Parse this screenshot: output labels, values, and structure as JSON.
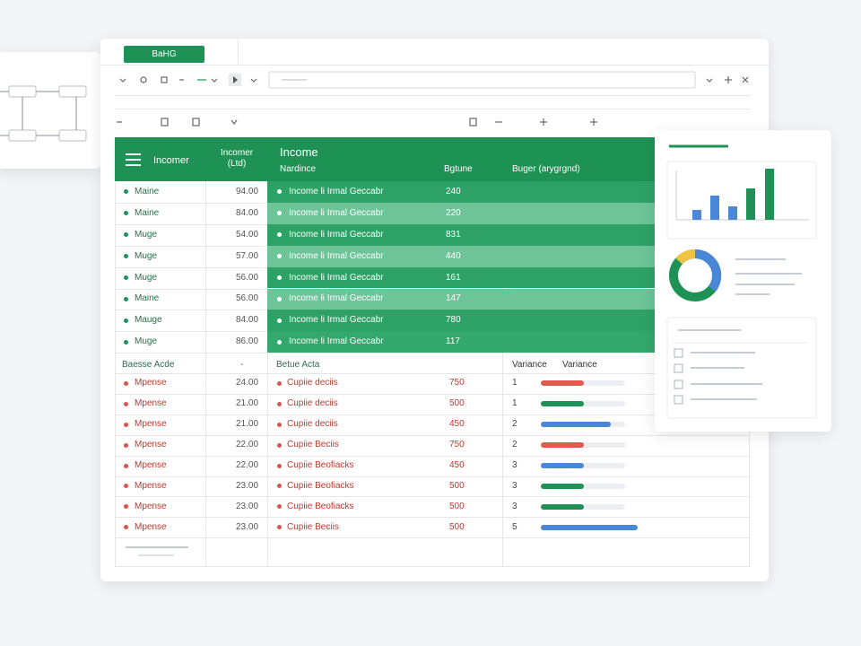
{
  "toolbar": {
    "tab": "BaHG"
  },
  "header": {
    "col1": "Incomer",
    "col2": "Incomer (Ltd)",
    "col3_title": "Income",
    "col3_sub": "Nardince",
    "col3_num": "Bgtune",
    "col4": "Buger (arygrgnd)"
  },
  "income_rows": [
    {
      "name": "Maine",
      "amount": "94.00",
      "desc": "Income li Irmal Geccabr",
      "value": 240
    },
    {
      "name": "Maine",
      "amount": "84.00",
      "desc": "Income li Irmal Geccabr",
      "value": 220
    },
    {
      "name": "Muge",
      "amount": "54.00",
      "desc": "Income li Irmal Geccabr",
      "value": 831
    },
    {
      "name": "Muge",
      "amount": "57.00",
      "desc": "Income li Irmal Geccabr",
      "value": 440
    },
    {
      "name": "Muge",
      "amount": "56.00",
      "desc": "Income li Irmal Geccabr",
      "value": 161
    },
    {
      "name": "Maine",
      "amount": "56.00",
      "desc": "Income li Irmal Geccabr",
      "value": 147
    },
    {
      "name": "Mauge",
      "amount": "84.00",
      "desc": "Income li Irmal Geccabr",
      "value": 780
    },
    {
      "name": "Muge",
      "amount": "86.00",
      "desc": "Income li Irmal Geccabr",
      "value": 117
    }
  ],
  "section": {
    "col1": "Baesse Acde",
    "col2": "-",
    "col3": "Betue Acta",
    "col4a": "Variance",
    "col4b": "Variance"
  },
  "expense_rows": [
    {
      "name": "Mpense",
      "amount": "24.00",
      "desc": "Cupiie deciis",
      "value": 750,
      "variance": 1
    },
    {
      "name": "Mpense",
      "amount": "21.00",
      "desc": "Cupiie deciis",
      "value": 500,
      "variance": 1
    },
    {
      "name": "Mpense",
      "amount": "21.00",
      "desc": "Cupiie deciis",
      "value": 450,
      "variance": 2
    },
    {
      "name": "Mpense",
      "amount": "22.00",
      "desc": "Cupiie Beciis",
      "value": 750,
      "variance": 2
    },
    {
      "name": "Mpense",
      "amount": "22.00",
      "desc": "Cupiie Beofiacks",
      "value": 450,
      "variance": 3
    },
    {
      "name": "Mpense",
      "amount": "23.00",
      "desc": "Cupiie Beofiacks",
      "value": 500,
      "variance": 3
    },
    {
      "name": "Mpense",
      "amount": "23.00",
      "desc": "Cupiie Beofiacks",
      "value": 500,
      "variance": 3
    },
    {
      "name": "Mpense",
      "amount": "23.00",
      "desc": "Cupiie Beciis",
      "value": 500,
      "variance": 5
    }
  ]
}
